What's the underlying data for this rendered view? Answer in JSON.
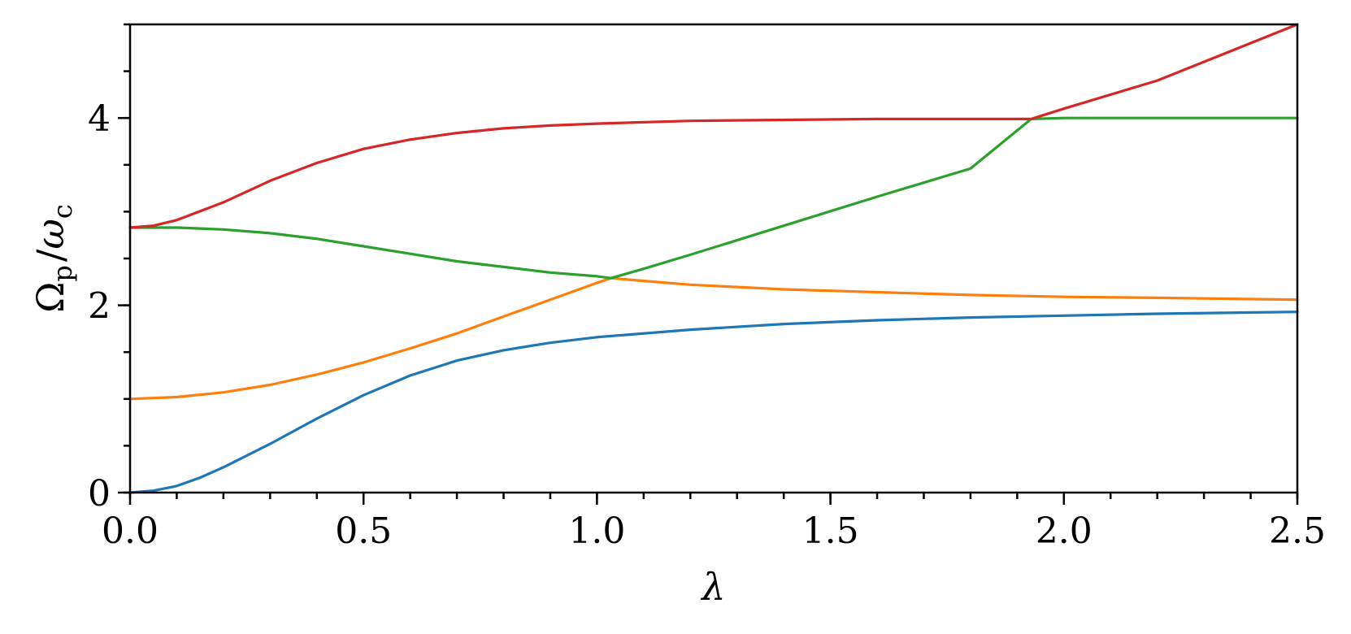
{
  "chart_data": {
    "type": "line",
    "xlabel": "λ",
    "ylabel_main": "Ω",
    "ylabel_sub1": "p",
    "ylabel_slash": "/",
    "ylabel_omega": "ω",
    "ylabel_sub2": "c",
    "xlim": [
      0,
      2.5
    ],
    "ylim": [
      0,
      5
    ],
    "x_ticks": [
      0.0,
      0.5,
      1.0,
      1.5,
      2.0,
      2.5
    ],
    "x_tick_labels": [
      "0.0",
      "0.5",
      "1.0",
      "1.5",
      "2.0",
      "2.5"
    ],
    "x_minor_step": 0.1,
    "y_ticks": [
      0,
      2,
      4
    ],
    "y_tick_labels": [
      "0",
      "2",
      "4"
    ],
    "y_minor_step": 0.5,
    "grid": false,
    "series": [
      {
        "color": "#1f77b4",
        "x": [
          0,
          0.05,
          0.1,
          0.15,
          0.2,
          0.3,
          0.4,
          0.5,
          0.6,
          0.7,
          0.8,
          0.9,
          1.0,
          1.2,
          1.4,
          1.6,
          1.8,
          2.0,
          2.2,
          2.5
        ],
        "y": [
          0,
          0.02,
          0.07,
          0.16,
          0.27,
          0.52,
          0.79,
          1.04,
          1.25,
          1.41,
          1.52,
          1.6,
          1.66,
          1.74,
          1.8,
          1.84,
          1.87,
          1.89,
          1.91,
          1.93
        ]
      },
      {
        "color": "#ff7f0e",
        "x": [
          0,
          0.1,
          0.2,
          0.3,
          0.4,
          0.5,
          0.6,
          0.7,
          0.8,
          0.9,
          1.0,
          1.03,
          1.1,
          1.2,
          1.4,
          1.6,
          1.8,
          2.0,
          2.2,
          2.5
        ],
        "y": [
          1.0,
          1.02,
          1.07,
          1.15,
          1.26,
          1.39,
          1.54,
          1.7,
          1.88,
          2.06,
          2.24,
          2.29,
          2.26,
          2.22,
          2.17,
          2.14,
          2.11,
          2.09,
          2.08,
          2.06
        ]
      },
      {
        "color": "#2ca02c",
        "x": [
          0,
          0.1,
          0.2,
          0.3,
          0.4,
          0.5,
          0.6,
          0.7,
          0.8,
          0.9,
          1.0,
          1.03,
          1.1,
          1.2,
          1.4,
          1.6,
          1.8,
          1.93,
          2.0,
          2.2,
          2.5
        ],
        "y": [
          2.83,
          2.83,
          2.81,
          2.77,
          2.71,
          2.63,
          2.55,
          2.47,
          2.41,
          2.35,
          2.31,
          2.29,
          2.39,
          2.54,
          2.85,
          3.16,
          3.46,
          3.99,
          4.0,
          4.0,
          4.0
        ]
      },
      {
        "color": "#d62728",
        "x": [
          0,
          0.05,
          0.1,
          0.2,
          0.3,
          0.4,
          0.5,
          0.6,
          0.7,
          0.8,
          0.9,
          1.0,
          1.2,
          1.4,
          1.6,
          1.8,
          1.93,
          2.0,
          2.2,
          2.5
        ],
        "y": [
          2.83,
          2.85,
          2.91,
          3.1,
          3.33,
          3.52,
          3.67,
          3.77,
          3.84,
          3.89,
          3.92,
          3.94,
          3.97,
          3.98,
          3.99,
          3.99,
          3.99,
          4.1,
          4.4,
          5.0
        ]
      }
    ]
  }
}
